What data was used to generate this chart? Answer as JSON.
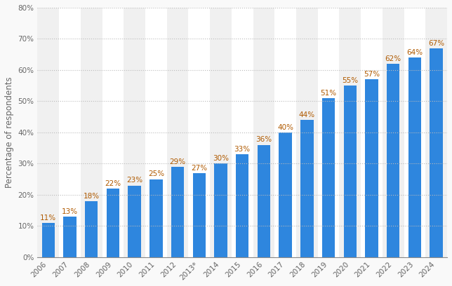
{
  "categories": [
    "2006",
    "2007",
    "2008",
    "2009",
    "2010",
    "2011",
    "2012",
    "2013*",
    "2014",
    "2015",
    "2016",
    "2017",
    "2018",
    "2019",
    "2020",
    "2021",
    "2022",
    "2023",
    "2024"
  ],
  "values": [
    11,
    13,
    18,
    22,
    23,
    25,
    29,
    27,
    30,
    33,
    36,
    40,
    44,
    51,
    55,
    57,
    62,
    64,
    67
  ],
  "bar_color": "#2e86de",
  "ylabel": "Percentage of respondents",
  "ylim": [
    0,
    80
  ],
  "yticks": [
    0,
    10,
    20,
    30,
    40,
    50,
    60,
    70,
    80
  ],
  "grid_color": "#bbbbbb",
  "background_color": "#f9f9f9",
  "plot_bg_color": "#ffffff",
  "stripe_color_1": "#f0f0f0",
  "stripe_color_2": "#ffffff",
  "label_color": "#666666",
  "bar_label_color": "#b05a00",
  "label_fontsize": 7.5,
  "tick_fontsize": 7.5,
  "ylabel_fontsize": 8.5
}
